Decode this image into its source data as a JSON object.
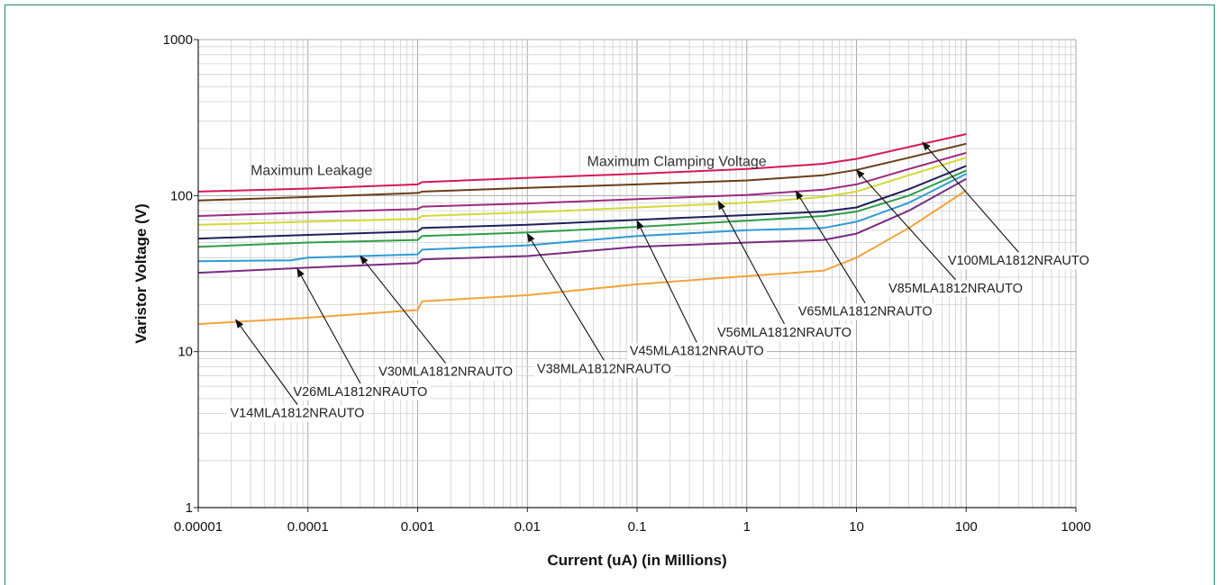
{
  "chart_data": {
    "type": "line",
    "xscale": "log",
    "yscale": "log",
    "xlim": [
      1e-05,
      1000
    ],
    "ylim": [
      1,
      1000
    ],
    "grid": true,
    "xlabel": "Current (uA) (in Millions)",
    "ylabel": "Varistor Voltage (V)",
    "xticks": [
      "0.00001",
      "0.0001",
      "0.001",
      "0.01",
      "0.1",
      "1",
      "10",
      "100",
      "1000"
    ],
    "yticks": [
      "1",
      "10",
      "100",
      "1000"
    ],
    "annotations": [
      {
        "text": "Maximum Leakage",
        "x": 3e-05,
        "y": 135
      },
      {
        "text": "Maximum Clamping Voltage",
        "x": 0.035,
        "y": 155
      }
    ],
    "series": [
      {
        "name": "V100MLA1812NRAUTO",
        "color": "#d6175a",
        "x": [
          1e-05,
          0.0001,
          0.001,
          0.0011,
          0.01,
          0.1,
          1,
          5,
          10,
          30,
          100
        ],
        "y": [
          106,
          111,
          118,
          122,
          130,
          138,
          148,
          160,
          172,
          205,
          248
        ]
      },
      {
        "name": "V85MLA1812NRAUTO",
        "color": "#6b3d15",
        "x": [
          1e-05,
          0.0001,
          0.001,
          0.0011,
          0.01,
          0.1,
          1,
          5,
          10,
          30,
          100
        ],
        "y": [
          93,
          98,
          104,
          106,
          112,
          118,
          125,
          135,
          146,
          175,
          215
        ]
      },
      {
        "name": "V65MLA1812NRAUTO",
        "color": "#9b2a7f",
        "x": [
          1e-05,
          0.0001,
          0.001,
          0.0011,
          0.01,
          0.1,
          1,
          5,
          10,
          30,
          100
        ],
        "y": [
          74,
          78,
          82,
          85,
          89,
          95,
          101,
          109,
          118,
          148,
          188
        ]
      },
      {
        "name": "V56MLA1812NRAUTO",
        "color": "#d3d935",
        "x": [
          1e-05,
          0.0001,
          0.001,
          0.0011,
          0.01,
          0.1,
          1,
          5,
          10,
          30,
          100
        ],
        "y": [
          65,
          68,
          71,
          74,
          78,
          84,
          90,
          98,
          106,
          135,
          175
        ]
      },
      {
        "name": "V45MLA1812NRAUTO",
        "color": "#1f1f5c",
        "x": [
          1e-05,
          0.0001,
          0.001,
          0.0011,
          0.01,
          0.1,
          1,
          5,
          10,
          30,
          100
        ],
        "y": [
          53,
          56,
          59,
          62,
          65,
          70,
          75,
          79,
          84,
          110,
          155
        ]
      },
      {
        "name": "V38MLA1812NRAUTO",
        "color": "#2e9e48",
        "x": [
          1e-05,
          0.0001,
          0.001,
          0.0011,
          0.01,
          0.1,
          1,
          5,
          10,
          30,
          100
        ],
        "y": [
          47,
          50,
          52,
          55,
          58,
          63,
          69,
          74,
          79,
          100,
          145
        ]
      },
      {
        "name": "V30MLA1812NRAUTO",
        "color": "#2e9bd6",
        "x": [
          1e-05,
          7e-05,
          0.0001,
          0.001,
          0.0011,
          0.01,
          0.1,
          1,
          5,
          10,
          30,
          100
        ],
        "y": [
          38,
          38.5,
          40,
          42,
          45,
          48,
          55,
          60,
          62,
          68,
          90,
          138
        ]
      },
      {
        "name": "V26MLA1812NRAUTO",
        "color": "#7a2a82",
        "x": [
          1e-05,
          0.0001,
          0.001,
          0.0011,
          0.01,
          0.1,
          1,
          5,
          10,
          30,
          100
        ],
        "y": [
          32,
          34.5,
          37,
          39,
          41,
          47,
          50,
          52,
          57,
          80,
          128
        ]
      },
      {
        "name": "V14MLA1812NRAUTO",
        "color": "#f3a33a",
        "x": [
          1e-05,
          0.0001,
          0.001,
          0.0011,
          0.01,
          0.1,
          1,
          5,
          10,
          30,
          100
        ],
        "y": [
          15,
          16.5,
          18.5,
          21,
          23,
          27,
          30.5,
          33,
          40,
          62,
          108
        ]
      }
    ],
    "series_labels": [
      {
        "series": "V100MLA1812NRAUTO",
        "text": "V100MLA1812NRAUTO",
        "arrow_x": 40,
        "arrow_y": 220,
        "label_x": 300,
        "label_y": 36
      },
      {
        "series": "V85MLA1812NRAUTO",
        "text": "V85MLA1812NRAUTO",
        "arrow_x": 10,
        "arrow_y": 146,
        "label_x": 80,
        "label_y": 24
      },
      {
        "series": "V65MLA1812NRAUTO",
        "text": "V65MLA1812NRAUTO",
        "arrow_x": 2.8,
        "arrow_y": 107,
        "label_x": 12,
        "label_y": 17
      },
      {
        "series": "V56MLA1812NRAUTO",
        "text": "V56MLA1812NRAUTO",
        "arrow_x": 0.55,
        "arrow_y": 92,
        "label_x": 2.2,
        "label_y": 12.5
      },
      {
        "series": "V45MLA1812NRAUTO",
        "text": "V45MLA1812NRAUTO",
        "arrow_x": 0.1,
        "arrow_y": 69,
        "label_x": 0.35,
        "label_y": 9.5
      },
      {
        "series": "V38MLA1812NRAUTO",
        "text": "V38MLA1812NRAUTO",
        "arrow_x": 0.01,
        "arrow_y": 57,
        "label_x": 0.05,
        "label_y": 7.3
      },
      {
        "series": "V30MLA1812NRAUTO",
        "text": "V30MLA1812NRAUTO",
        "arrow_x": 0.0003,
        "arrow_y": 41,
        "label_x": 0.0018,
        "label_y": 7.0
      },
      {
        "series": "V26MLA1812NRAUTO",
        "text": "V26MLA1812NRAUTO",
        "arrow_x": 8e-05,
        "arrow_y": 34,
        "label_x": 0.0003,
        "label_y": 5.2
      },
      {
        "series": "V14MLA1812NRAUTO",
        "text": "V14MLA1812NRAUTO",
        "arrow_x": 2.2e-05,
        "arrow_y": 16,
        "label_x": 8e-05,
        "label_y": 3.8
      }
    ]
  }
}
